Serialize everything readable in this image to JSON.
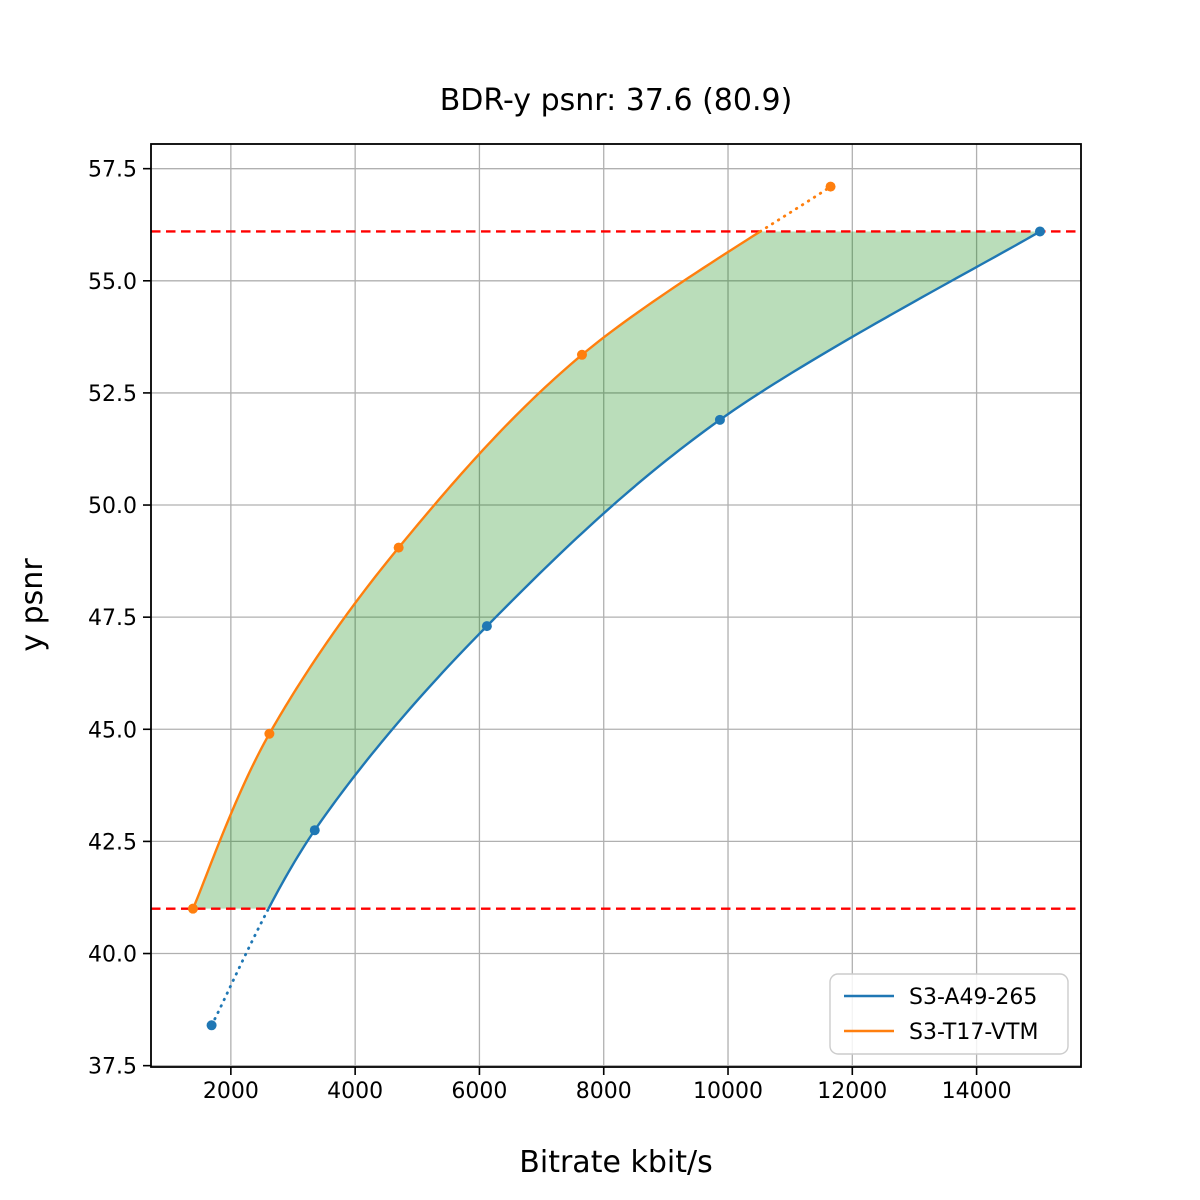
{
  "figure": {
    "background_color": "#ffffff"
  },
  "chart_data": {
    "type": "line",
    "title": "BDR-y psnr: 37.6 (80.9)",
    "xlabel": "Bitrate kbit/s",
    "ylabel": "y psnr",
    "xlim": [
      715,
      15680
    ],
    "ylim": [
      37.47,
      58.05
    ],
    "xticks": [
      2000,
      4000,
      6000,
      8000,
      10000,
      12000,
      14000
    ],
    "yticks": [
      37.5,
      40.0,
      42.5,
      45.0,
      47.5,
      50.0,
      52.5,
      55.0,
      57.5
    ],
    "grid": true,
    "grid_color": "#b0b0b0",
    "spine_color": "#000000",
    "series": [
      {
        "name": "S3-A49-265",
        "color": "#1f77b4",
        "marker": "circle",
        "points": [
          [
            1690,
            38.4
          ],
          [
            3350,
            42.75
          ],
          [
            6120,
            47.3
          ],
          [
            9870,
            51.9
          ],
          [
            15020,
            56.1
          ]
        ]
      },
      {
        "name": "S3-T17-VTM",
        "color": "#ff7f0e",
        "marker": "circle",
        "points": [
          [
            1390,
            41.0
          ],
          [
            2620,
            44.9
          ],
          [
            4700,
            49.05
          ],
          [
            7650,
            53.35
          ],
          [
            11650,
            57.1
          ]
        ]
      }
    ],
    "overlap_band": {
      "lower_psnr": 41.0,
      "upper_psnr": 56.1,
      "line_color": "#ff0000",
      "line_style": "dashed",
      "fill_color": "#008000",
      "fill_opacity": 0.27
    },
    "legend": {
      "position": "lower right",
      "entries": [
        "S3-A49-265",
        "S3-T17-VTM"
      ]
    }
  }
}
